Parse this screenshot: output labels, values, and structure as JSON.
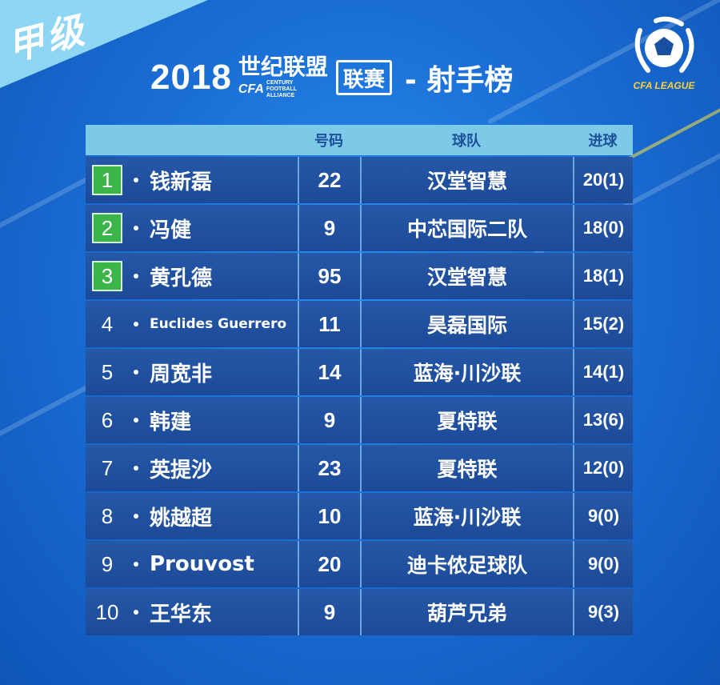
{
  "corner_label": "甲级",
  "title": {
    "year": "2018",
    "brand_cn": "世纪联盟",
    "brand_cfa": "CFA",
    "brand_en": "CENTURY FOOTBALL ALLIANCE",
    "league_box": "联赛",
    "subtitle": "- 射手榜"
  },
  "logo": {
    "text": "CFA LEAGUE",
    "accent": "#ffd234"
  },
  "table": {
    "headers": {
      "name": "",
      "number": "号码",
      "team": "球队",
      "goals": "进球"
    },
    "rows": [
      {
        "rank": "1",
        "name": "钱新磊",
        "number": "22",
        "team": "汉堂智慧",
        "goals": "20(1)"
      },
      {
        "rank": "2",
        "name": "冯健",
        "number": "9",
        "team": "中芯国际二队",
        "goals": "18(0)"
      },
      {
        "rank": "3",
        "name": "黄孔德",
        "number": "95",
        "team": "汉堂智慧",
        "goals": "18(1)"
      },
      {
        "rank": "4",
        "name": "Euclides Guerrero",
        "number": "11",
        "team": "昊磊国际",
        "goals": "15(2)"
      },
      {
        "rank": "5",
        "name": "周宽非",
        "number": "14",
        "team": "蓝海·川沙联",
        "goals": "14(1)"
      },
      {
        "rank": "6",
        "name": "韩建",
        "number": "9",
        "team": "夏特联",
        "goals": "13(6)"
      },
      {
        "rank": "7",
        "name": "英提沙",
        "number": "23",
        "team": "夏特联",
        "goals": "12(0)"
      },
      {
        "rank": "8",
        "name": "姚越超",
        "number": "10",
        "team": "蓝海·川沙联",
        "goals": "9(0)"
      },
      {
        "rank": "9",
        "name": "Prouvost",
        "number": "20",
        "team": "迪卡侬足球队",
        "goals": "9(0)"
      },
      {
        "rank": "10",
        "name": "王华东",
        "number": "9",
        "team": "葫芦兄弟",
        "goals": "9(3)"
      }
    ]
  },
  "colors": {
    "top_rank_badge": "#3bb54a",
    "header_bg": "#7dc9e8",
    "row_bg": "#1f4e9e"
  }
}
